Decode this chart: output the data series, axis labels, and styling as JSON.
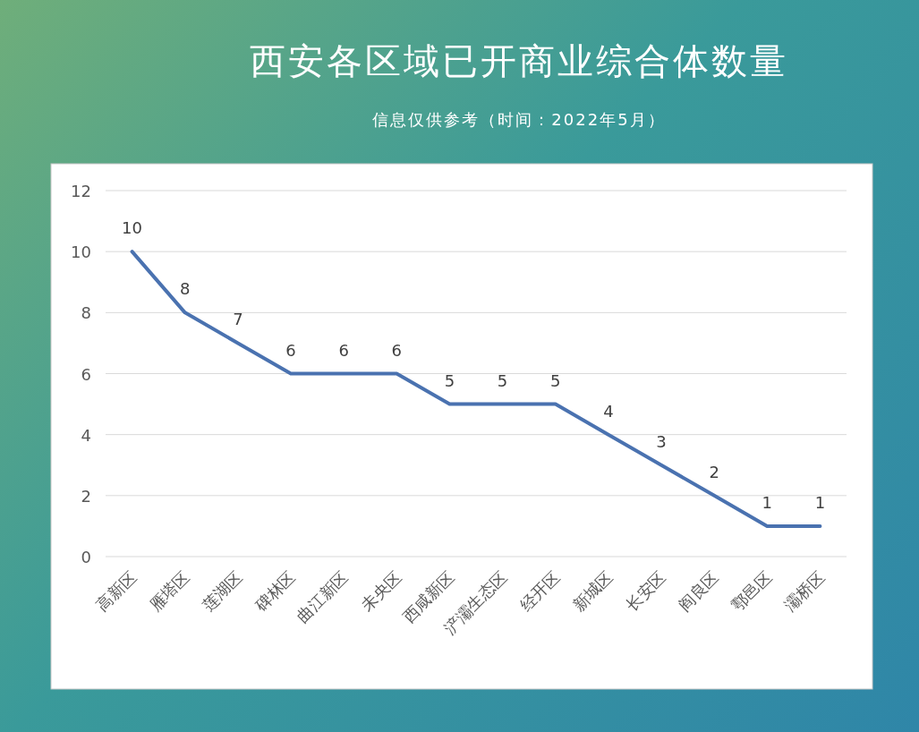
{
  "chart_data": {
    "type": "line",
    "title": "西安各区域已开商业综合体数量",
    "subtitle": "信息仅供参考（时间：2022年5月）",
    "categories": [
      "高新区",
      "雁塔区",
      "莲湖区",
      "碑林区",
      "曲江新区",
      "未央区",
      "西咸新区",
      "浐灞生态区",
      "经开区",
      "新城区",
      "长安区",
      "阎良区",
      "鄠邑区",
      "灞桥区"
    ],
    "values": [
      10,
      8,
      7,
      6,
      6,
      6,
      5,
      5,
      5,
      4,
      3,
      2,
      1,
      1
    ],
    "color": "#4a72b0",
    "ylim": [
      0,
      12
    ],
    "yticks": [
      0,
      2,
      4,
      6,
      8,
      10,
      12
    ],
    "grid": "y",
    "data_labels": true,
    "marker": "none",
    "line_style": "solid"
  }
}
